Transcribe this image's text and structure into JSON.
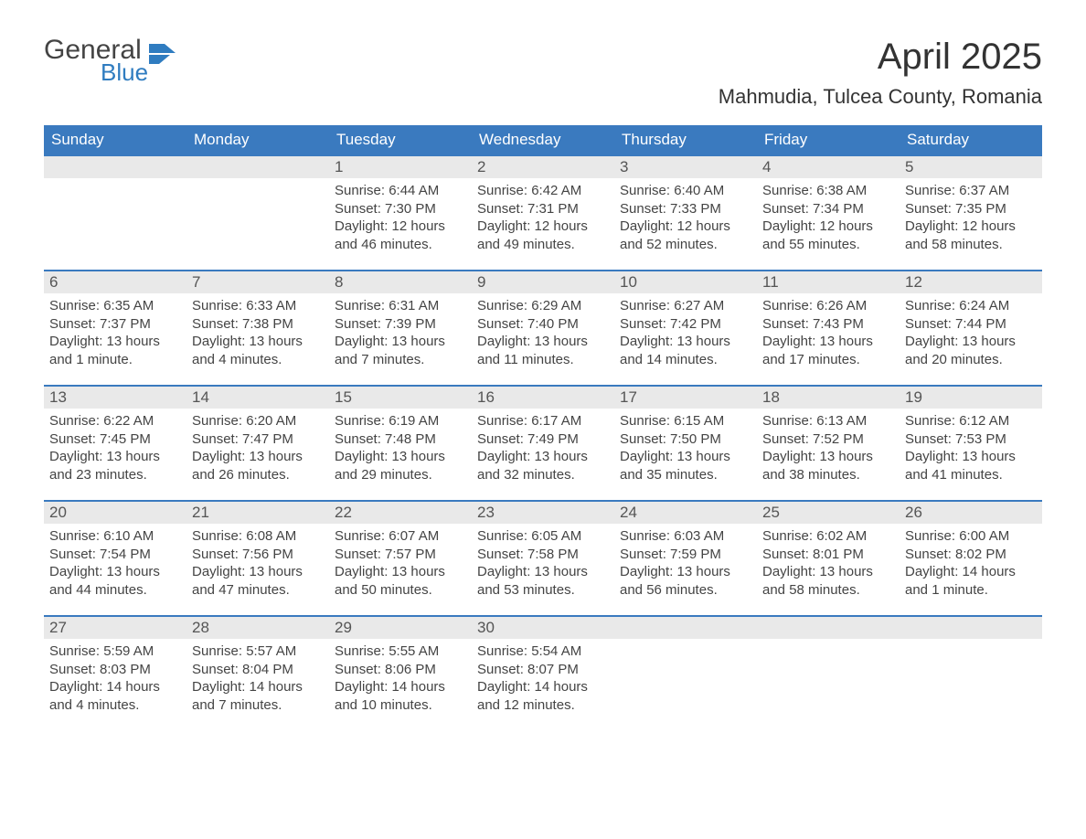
{
  "logo": {
    "word1": "General",
    "word2": "Blue",
    "icon_color": "#2f7cc0",
    "text_color_word1": "#444444",
    "text_color_word2": "#2f7cc0"
  },
  "title": "April 2025",
  "location": "Mahmudia, Tulcea County, Romania",
  "colors": {
    "header_bg": "#3a7abf",
    "header_text": "#ffffff",
    "daynum_bg": "#e9e9e9",
    "daynum_text": "#555555",
    "body_text": "#444444",
    "week_border": "#3a7abf",
    "page_bg": "#ffffff"
  },
  "typography": {
    "title_fontsize": 40,
    "location_fontsize": 22,
    "dow_fontsize": 17,
    "daynum_fontsize": 17,
    "body_fontsize": 15
  },
  "days_of_week": [
    "Sunday",
    "Monday",
    "Tuesday",
    "Wednesday",
    "Thursday",
    "Friday",
    "Saturday"
  ],
  "weeks": [
    [
      {
        "blank": true
      },
      {
        "blank": true
      },
      {
        "num": "1",
        "sunrise": "Sunrise: 6:44 AM",
        "sunset": "Sunset: 7:30 PM",
        "daylight1": "Daylight: 12 hours",
        "daylight2": "and 46 minutes."
      },
      {
        "num": "2",
        "sunrise": "Sunrise: 6:42 AM",
        "sunset": "Sunset: 7:31 PM",
        "daylight1": "Daylight: 12 hours",
        "daylight2": "and 49 minutes."
      },
      {
        "num": "3",
        "sunrise": "Sunrise: 6:40 AM",
        "sunset": "Sunset: 7:33 PM",
        "daylight1": "Daylight: 12 hours",
        "daylight2": "and 52 minutes."
      },
      {
        "num": "4",
        "sunrise": "Sunrise: 6:38 AM",
        "sunset": "Sunset: 7:34 PM",
        "daylight1": "Daylight: 12 hours",
        "daylight2": "and 55 minutes."
      },
      {
        "num": "5",
        "sunrise": "Sunrise: 6:37 AM",
        "sunset": "Sunset: 7:35 PM",
        "daylight1": "Daylight: 12 hours",
        "daylight2": "and 58 minutes."
      }
    ],
    [
      {
        "num": "6",
        "sunrise": "Sunrise: 6:35 AM",
        "sunset": "Sunset: 7:37 PM",
        "daylight1": "Daylight: 13 hours",
        "daylight2": "and 1 minute."
      },
      {
        "num": "7",
        "sunrise": "Sunrise: 6:33 AM",
        "sunset": "Sunset: 7:38 PM",
        "daylight1": "Daylight: 13 hours",
        "daylight2": "and 4 minutes."
      },
      {
        "num": "8",
        "sunrise": "Sunrise: 6:31 AM",
        "sunset": "Sunset: 7:39 PM",
        "daylight1": "Daylight: 13 hours",
        "daylight2": "and 7 minutes."
      },
      {
        "num": "9",
        "sunrise": "Sunrise: 6:29 AM",
        "sunset": "Sunset: 7:40 PM",
        "daylight1": "Daylight: 13 hours",
        "daylight2": "and 11 minutes."
      },
      {
        "num": "10",
        "sunrise": "Sunrise: 6:27 AM",
        "sunset": "Sunset: 7:42 PM",
        "daylight1": "Daylight: 13 hours",
        "daylight2": "and 14 minutes."
      },
      {
        "num": "11",
        "sunrise": "Sunrise: 6:26 AM",
        "sunset": "Sunset: 7:43 PM",
        "daylight1": "Daylight: 13 hours",
        "daylight2": "and 17 minutes."
      },
      {
        "num": "12",
        "sunrise": "Sunrise: 6:24 AM",
        "sunset": "Sunset: 7:44 PM",
        "daylight1": "Daylight: 13 hours",
        "daylight2": "and 20 minutes."
      }
    ],
    [
      {
        "num": "13",
        "sunrise": "Sunrise: 6:22 AM",
        "sunset": "Sunset: 7:45 PM",
        "daylight1": "Daylight: 13 hours",
        "daylight2": "and 23 minutes."
      },
      {
        "num": "14",
        "sunrise": "Sunrise: 6:20 AM",
        "sunset": "Sunset: 7:47 PM",
        "daylight1": "Daylight: 13 hours",
        "daylight2": "and 26 minutes."
      },
      {
        "num": "15",
        "sunrise": "Sunrise: 6:19 AM",
        "sunset": "Sunset: 7:48 PM",
        "daylight1": "Daylight: 13 hours",
        "daylight2": "and 29 minutes."
      },
      {
        "num": "16",
        "sunrise": "Sunrise: 6:17 AM",
        "sunset": "Sunset: 7:49 PM",
        "daylight1": "Daylight: 13 hours",
        "daylight2": "and 32 minutes."
      },
      {
        "num": "17",
        "sunrise": "Sunrise: 6:15 AM",
        "sunset": "Sunset: 7:50 PM",
        "daylight1": "Daylight: 13 hours",
        "daylight2": "and 35 minutes."
      },
      {
        "num": "18",
        "sunrise": "Sunrise: 6:13 AM",
        "sunset": "Sunset: 7:52 PM",
        "daylight1": "Daylight: 13 hours",
        "daylight2": "and 38 minutes."
      },
      {
        "num": "19",
        "sunrise": "Sunrise: 6:12 AM",
        "sunset": "Sunset: 7:53 PM",
        "daylight1": "Daylight: 13 hours",
        "daylight2": "and 41 minutes."
      }
    ],
    [
      {
        "num": "20",
        "sunrise": "Sunrise: 6:10 AM",
        "sunset": "Sunset: 7:54 PM",
        "daylight1": "Daylight: 13 hours",
        "daylight2": "and 44 minutes."
      },
      {
        "num": "21",
        "sunrise": "Sunrise: 6:08 AM",
        "sunset": "Sunset: 7:56 PM",
        "daylight1": "Daylight: 13 hours",
        "daylight2": "and 47 minutes."
      },
      {
        "num": "22",
        "sunrise": "Sunrise: 6:07 AM",
        "sunset": "Sunset: 7:57 PM",
        "daylight1": "Daylight: 13 hours",
        "daylight2": "and 50 minutes."
      },
      {
        "num": "23",
        "sunrise": "Sunrise: 6:05 AM",
        "sunset": "Sunset: 7:58 PM",
        "daylight1": "Daylight: 13 hours",
        "daylight2": "and 53 minutes."
      },
      {
        "num": "24",
        "sunrise": "Sunrise: 6:03 AM",
        "sunset": "Sunset: 7:59 PM",
        "daylight1": "Daylight: 13 hours",
        "daylight2": "and 56 minutes."
      },
      {
        "num": "25",
        "sunrise": "Sunrise: 6:02 AM",
        "sunset": "Sunset: 8:01 PM",
        "daylight1": "Daylight: 13 hours",
        "daylight2": "and 58 minutes."
      },
      {
        "num": "26",
        "sunrise": "Sunrise: 6:00 AM",
        "sunset": "Sunset: 8:02 PM",
        "daylight1": "Daylight: 14 hours",
        "daylight2": "and 1 minute."
      }
    ],
    [
      {
        "num": "27",
        "sunrise": "Sunrise: 5:59 AM",
        "sunset": "Sunset: 8:03 PM",
        "daylight1": "Daylight: 14 hours",
        "daylight2": "and 4 minutes."
      },
      {
        "num": "28",
        "sunrise": "Sunrise: 5:57 AM",
        "sunset": "Sunset: 8:04 PM",
        "daylight1": "Daylight: 14 hours",
        "daylight2": "and 7 minutes."
      },
      {
        "num": "29",
        "sunrise": "Sunrise: 5:55 AM",
        "sunset": "Sunset: 8:06 PM",
        "daylight1": "Daylight: 14 hours",
        "daylight2": "and 10 minutes."
      },
      {
        "num": "30",
        "sunrise": "Sunrise: 5:54 AM",
        "sunset": "Sunset: 8:07 PM",
        "daylight1": "Daylight: 14 hours",
        "daylight2": "and 12 minutes."
      },
      {
        "blank": true
      },
      {
        "blank": true
      },
      {
        "blank": true
      }
    ]
  ]
}
